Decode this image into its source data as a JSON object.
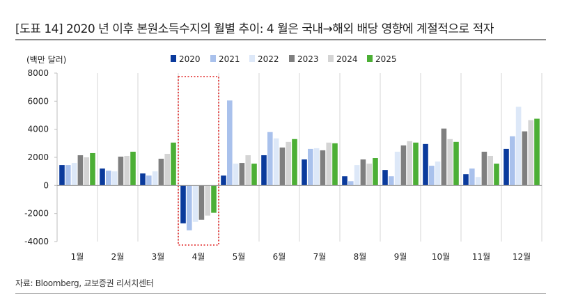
{
  "figure": {
    "title": "[도표 14] 2020 년 이후 본원소득수지의 월별 추이: 4 월은 국내→해외 배당 영향에 계절적으로 적자",
    "source": "자료: Bloomberg, 교보증권 리서치센터"
  },
  "chart_data": {
    "type": "bar",
    "ylabel": "(백만 달러)",
    "xlabel": "",
    "ylim": [
      -4000,
      8000
    ],
    "yticks": [
      -4000,
      -2000,
      0,
      2000,
      4000,
      6000,
      8000
    ],
    "ytick_labels": [
      "-4000",
      "-2000",
      "0",
      "2000",
      "4000",
      "6000",
      "8000"
    ],
    "grid": "vertical separators between months",
    "legend_position": "top-center",
    "categories": [
      "1월",
      "2월",
      "3월",
      "4월",
      "5월",
      "6월",
      "7월",
      "8월",
      "9월",
      "10월",
      "11월",
      "12월"
    ],
    "highlight": {
      "category": "4월",
      "style": "red dotted box"
    },
    "series": [
      {
        "name": "2020",
        "color": "#0a3a9c",
        "values": [
          1450,
          1200,
          850,
          -2700,
          700,
          2150,
          1850,
          650,
          1100,
          2950,
          800,
          2600
        ]
      },
      {
        "name": "2021",
        "color": "#a9c1ec",
        "values": [
          1450,
          1050,
          700,
          -3200,
          6050,
          3800,
          2600,
          300,
          650,
          1400,
          1200,
          3500
        ]
      },
      {
        "name": "2022",
        "color": "#dde8f8",
        "values": [
          1600,
          1000,
          1000,
          -2600,
          1550,
          3350,
          2650,
          1450,
          2400,
          1700,
          600,
          5600
        ]
      },
      {
        "name": "2023",
        "color": "#7f7f7f",
        "values": [
          2150,
          2050,
          1900,
          -2450,
          1600,
          2700,
          2500,
          1850,
          2850,
          4050,
          2400,
          3850
        ]
      },
      {
        "name": "2024",
        "color": "#d4d4d4",
        "values": [
          2000,
          2100,
          2250,
          -2150,
          2150,
          3100,
          3050,
          1550,
          3150,
          3300,
          2100,
          4650
        ]
      },
      {
        "name": "2025",
        "color": "#4caf35",
        "values": [
          2300,
          2400,
          3050,
          -1950,
          1550,
          3300,
          3000,
          1950,
          3050,
          3100,
          1550,
          4750
        ]
      }
    ]
  }
}
